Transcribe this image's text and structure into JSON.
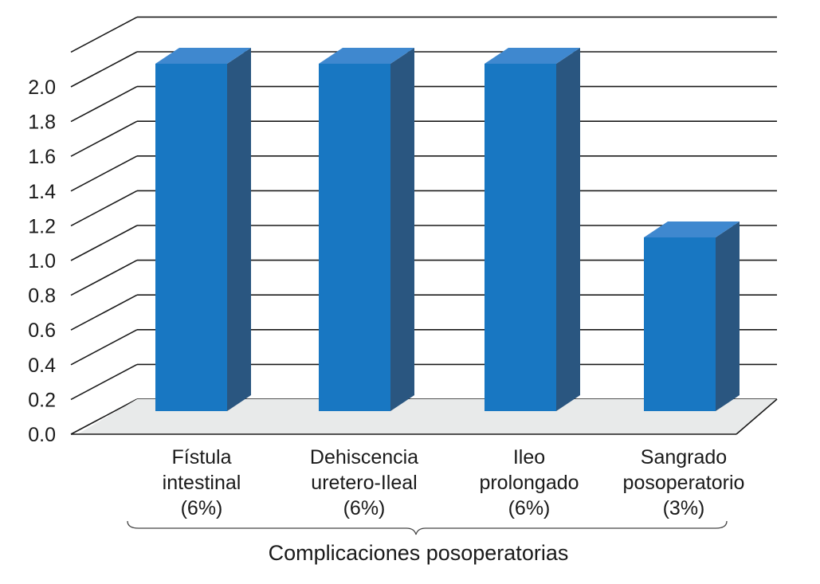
{
  "chart_data": {
    "type": "bar",
    "style": "3d",
    "categories": [
      [
        "Fístula",
        "intestinal",
        "(6%)"
      ],
      [
        "Dehiscencia",
        "uretero-Ileal",
        "(6%)"
      ],
      [
        "Ileo",
        "prolongado",
        "(6%)"
      ],
      [
        "Sangrado",
        "posoperatorio",
        "(3%)"
      ]
    ],
    "values": [
      2,
      2,
      2,
      1
    ],
    "yticks": [
      "0.0",
      "0.2",
      "0.4",
      "0.6",
      "0.8",
      "1.0",
      "1.2",
      "1.4",
      "1.6",
      "1.8",
      "2.0"
    ],
    "ylim": [
      0,
      2.2
    ],
    "xlabel": "Complicaciones posoperatorias",
    "grid": true,
    "colors": {
      "bar_front": "#1877c2",
      "bar_top": "#3f88cf",
      "bar_side": "#2a5680",
      "floor": "#e8eaea",
      "grid": "#1a1a1a"
    }
  }
}
